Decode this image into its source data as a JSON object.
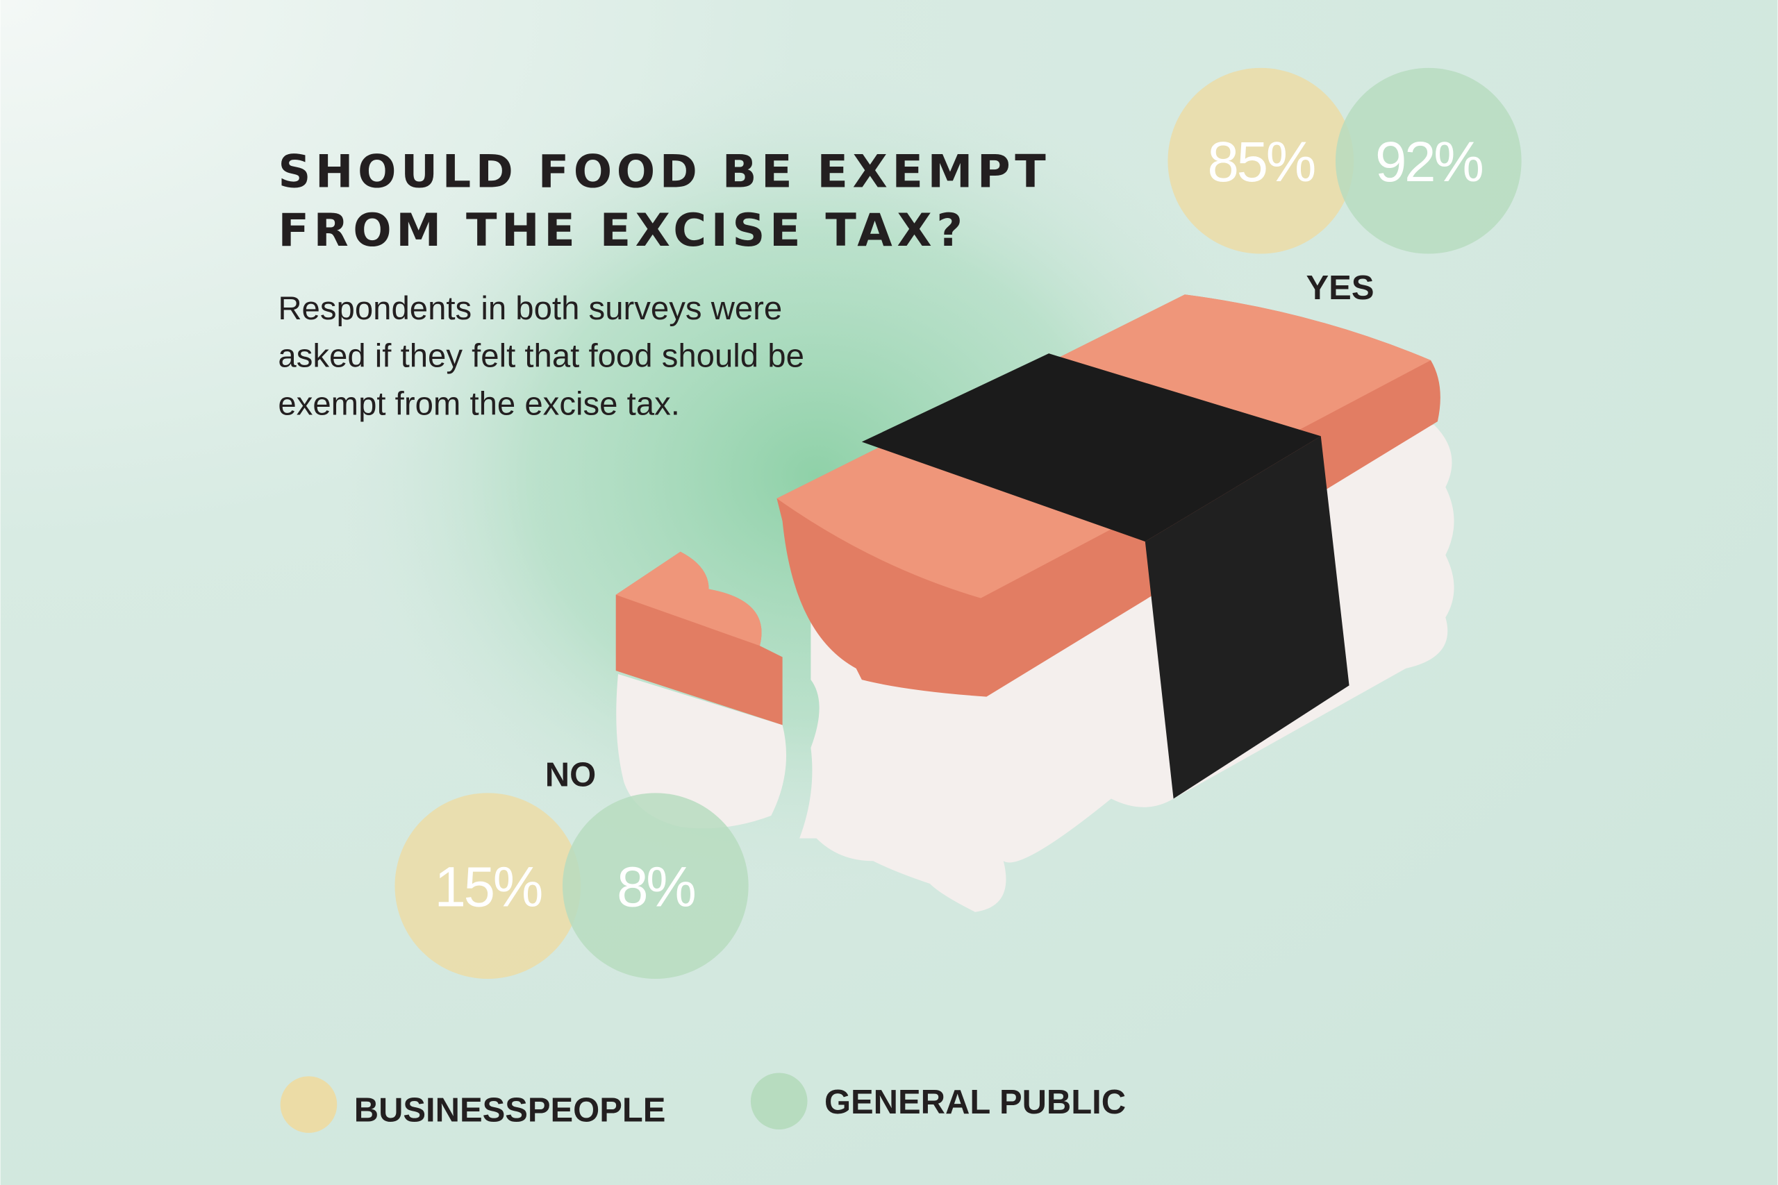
{
  "chart_data": {
    "type": "dot",
    "title": "SHOULD FOOD BE EXEMPT FROM THE EXCISE TAX?",
    "subtitle": [
      "Respondents in both surveys were",
      "asked if they felt that food should be",
      "exempt from the excise tax."
    ],
    "categories": [
      "YES",
      "NO"
    ],
    "series": [
      {
        "name": "BUSINESSPEOPLE",
        "color": "#ecdca6",
        "values": [
          85,
          15
        ],
        "value_labels": [
          "85%",
          "15%"
        ]
      },
      {
        "name": "GENERAL PUBLIC",
        "color": "#b7dcbf",
        "values": [
          92,
          8
        ],
        "value_labels": [
          "92%",
          "8%"
        ]
      }
    ]
  }
}
